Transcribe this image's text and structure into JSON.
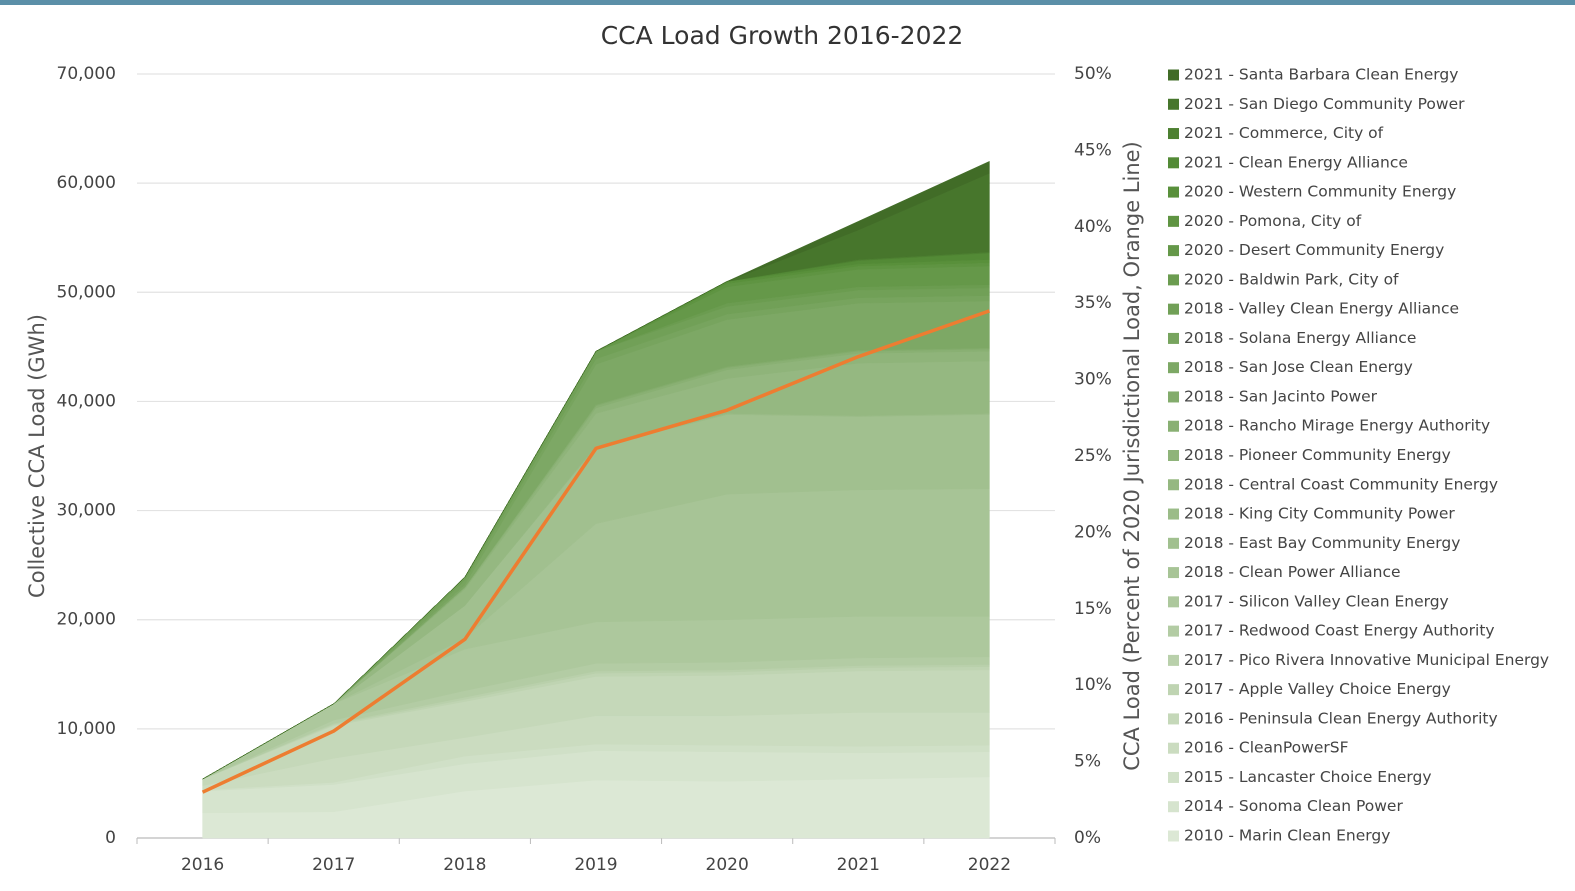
{
  "chart_data": {
    "type": "stacked_area",
    "title": "CCA Load Growth 2016-2022",
    "y_label": "Collective CCA Load (GWh)",
    "y2_label": "CCA Load (Percent of 2020 Jurisdictional Load, Orange Line)",
    "categories": [
      "2016",
      "2017",
      "2018",
      "2019",
      "2020",
      "2021",
      "2022"
    ],
    "ylim": [
      0,
      70000
    ],
    "yticks": [
      0,
      {
        "value": 10000,
        "label": "10,000"
      },
      {
        "value": 20000,
        "label": "20,000"
      },
      {
        "value": 30000,
        "label": "30,000"
      },
      {
        "value": 40000,
        "label": "40,000"
      },
      {
        "value": 50000,
        "label": "50,000"
      },
      {
        "value": 60000,
        "label": "60,000"
      },
      {
        "value": 70000,
        "label": "70,000"
      }
    ],
    "y2lim": [
      0,
      50
    ],
    "y2ticks": [
      {
        "value": 0,
        "label": "0%"
      },
      {
        "value": 5,
        "label": "5%"
      },
      {
        "value": 10,
        "label": "10%"
      },
      {
        "value": 15,
        "label": "15%"
      },
      {
        "value": 20,
        "label": "20%"
      },
      {
        "value": 25,
        "label": "25%"
      },
      {
        "value": 30,
        "label": "30%"
      },
      {
        "value": 35,
        "label": "35%"
      },
      {
        "value": 40,
        "label": "40%"
      },
      {
        "value": 45,
        "label": "45%"
      },
      {
        "value": 50,
        "label": "50%"
      }
    ],
    "grid": true,
    "legend": "right",
    "series": [
      {
        "name": "2010 - Marin Clean Energy",
        "color": "#dce8d5",
        "values": [
          2300,
          2400,
          4300,
          5300,
          5200,
          5400,
          5600
        ]
      },
      {
        "name": "2014 - Sonoma Clean Power",
        "color": "#d6e4ce",
        "values": [
          2000,
          2500,
          2500,
          2700,
          2700,
          2400,
          2300
        ]
      },
      {
        "name": "2015 - Lancaster Choice Energy",
        "color": "#d0e0c7",
        "values": [
          100,
          200,
          700,
          600,
          600,
          600,
          600
        ]
      },
      {
        "name": "2016 - CleanPowerSF",
        "color": "#cbdcc0",
        "values": [
          400,
          2200,
          1700,
          2600,
          2700,
          3100,
          3000
        ]
      },
      {
        "name": "2016 - Peninsula Clean Energy Authority",
        "color": "#c5d8b9",
        "values": [
          600,
          3000,
          3300,
          3600,
          3700,
          3800,
          3900
        ]
      },
      {
        "name": "2017 - Apple Valley Choice Energy",
        "color": "#bfd4b2",
        "values": [
          0,
          100,
          200,
          300,
          300,
          300,
          300
        ]
      },
      {
        "name": "2017 - Pico Rivera Innovative Municipal Energy",
        "color": "#b9d0ab",
        "values": [
          0,
          100,
          200,
          200,
          200,
          200,
          200
        ]
      },
      {
        "name": "2017 - Redwood Coast Energy Authority",
        "color": "#b3cca4",
        "values": [
          0,
          300,
          600,
          700,
          700,
          700,
          700
        ]
      },
      {
        "name": "2017 - Silicon Valley Clean Energy",
        "color": "#adc89d",
        "values": [
          0,
          1500,
          3800,
          3800,
          3900,
          3800,
          3700
        ]
      },
      {
        "name": "2018 - Clean Power Alliance",
        "color": "#a7c496",
        "values": [
          0,
          0,
          1000,
          9000,
          11500,
          11600,
          11700
        ]
      },
      {
        "name": "2018 - East Bay Community Energy",
        "color": "#a1c08f",
        "values": [
          0,
          0,
          3000,
          7000,
          7300,
          6700,
          6800
        ]
      },
      {
        "name": "2018 - King City Community Power",
        "color": "#9bbc88",
        "values": [
          0,
          0,
          0,
          100,
          100,
          100,
          100
        ]
      },
      {
        "name": "2018 - Central Coast Community Energy",
        "color": "#95b881",
        "values": [
          0,
          0,
          1500,
          3000,
          3200,
          4800,
          4800
        ]
      },
      {
        "name": "2018 - Pioneer Community Energy",
        "color": "#8fb47a",
        "values": [
          0,
          0,
          100,
          500,
          800,
          900,
          900
        ]
      },
      {
        "name": "2018 - Rancho Mirage Energy Authority",
        "color": "#89b073",
        "values": [
          0,
          0,
          100,
          200,
          200,
          200,
          200
        ]
      },
      {
        "name": "2018 - San Jacinto Power",
        "color": "#83ac6c",
        "values": [
          0,
          0,
          0,
          100,
          100,
          100,
          100
        ]
      },
      {
        "name": "2018 - San Jose Clean Energy",
        "color": "#7da865",
        "values": [
          0,
          0,
          200,
          3700,
          4300,
          4300,
          4300
        ]
      },
      {
        "name": "2018 - Solana Energy Alliance",
        "color": "#77a45e",
        "values": [
          0,
          0,
          400,
          500,
          500,
          500,
          500
        ]
      },
      {
        "name": "2018 - Valley Clean Energy Alliance",
        "color": "#71a057",
        "values": [
          0,
          0,
          300,
          700,
          700,
          700,
          700
        ]
      },
      {
        "name": "2020 - Baldwin Park, City of",
        "color": "#6b9c50",
        "values": [
          0,
          0,
          0,
          0,
          300,
          300,
          300
        ]
      },
      {
        "name": "2020 - Desert Community Energy",
        "color": "#659849",
        "values": [
          0,
          0,
          0,
          0,
          1500,
          1600,
          1700
        ]
      },
      {
        "name": "2020 - Pomona, City of",
        "color": "#5f9442",
        "values": [
          0,
          0,
          0,
          0,
          300,
          300,
          300
        ]
      },
      {
        "name": "2020 - Western Community Energy",
        "color": "#59903b",
        "values": [
          0,
          0,
          0,
          0,
          200,
          200,
          300
        ]
      },
      {
        "name": "2021 - Clean Energy Alliance",
        "color": "#538a36",
        "values": [
          0,
          0,
          0,
          0,
          0,
          300,
          600
        ]
      },
      {
        "name": "2021 - Commerce,  City of",
        "color": "#4d8031",
        "values": [
          0,
          0,
          0,
          0,
          0,
          100,
          100
        ]
      },
      {
        "name": "2021 - San Diego Community Power",
        "color": "#47762c",
        "values": [
          0,
          0,
          0,
          0,
          0,
          2700,
          7200
        ]
      },
      {
        "name": "2021 - Santa Barbara Clean Energy",
        "color": "#416c27",
        "values": [
          0,
          0,
          0,
          0,
          0,
          800,
          1100
        ]
      },
      {
        "type": "line",
        "axis": "y2",
        "color": "#ed7d31",
        "values": [
          3,
          7,
          13,
          25.5,
          28,
          31.5,
          34.5
        ]
      }
    ]
  }
}
